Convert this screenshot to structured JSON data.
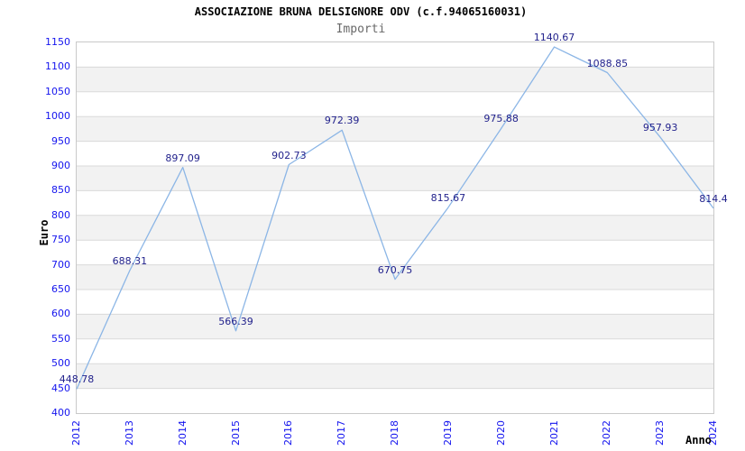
{
  "header": {
    "title": "ASSOCIAZIONE BRUNA DELSIGNORE ODV (c.f.94065160031)",
    "subtitle": "Importi"
  },
  "axes": {
    "y_label": "Euro",
    "x_label": "Anno"
  },
  "chart_data": {
    "type": "line",
    "title": "ASSOCIAZIONE BRUNA DELSIGNORE ODV (c.f.94065160031)",
    "subtitle": "Importi",
    "categories": [
      "2012",
      "2013",
      "2014",
      "2015",
      "2016",
      "2017",
      "2018",
      "2019",
      "2020",
      "2021",
      "2022",
      "2023",
      "2024"
    ],
    "values": [
      448.78,
      688.31,
      897.09,
      566.39,
      902.73,
      972.39,
      670.75,
      815.67,
      975.88,
      1140.67,
      1088.85,
      957.93,
      814.4
    ],
    "point_labels": [
      "448.78",
      "688.31",
      "897.09",
      "566.39",
      "902.73",
      "972.39",
      "670.75",
      "815.67",
      "975.88",
      "1140.67",
      "1088.85",
      "957.93",
      "814.4"
    ],
    "xlabel": "Anno",
    "ylabel": "Euro",
    "ylim": [
      400,
      1150
    ],
    "ytick_step": 50,
    "grid": true,
    "legend": "none",
    "colors": {
      "line": "#8cb6e6",
      "tick_text": "#1414ee",
      "point_label_text": "#22228c",
      "gridline": "#d9d9d9",
      "band_alt": "#f2f2f2",
      "plot_border": "#c9c9c9",
      "subtitle_text": "#696969"
    }
  }
}
